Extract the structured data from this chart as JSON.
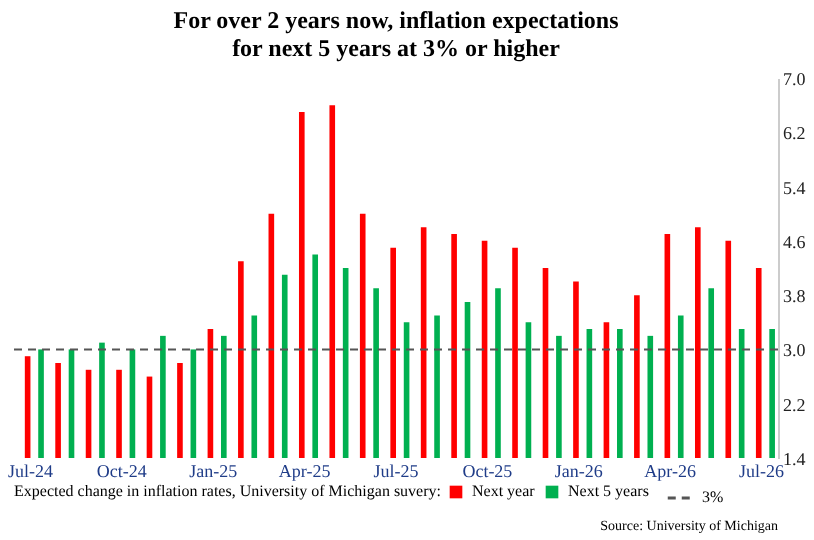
{
  "chart_data": {
    "type": "bar",
    "title": "For over 2 years now, inflation expectations for next 5 years at 3% or higher",
    "legend_title": "Expected change in inflation rates, University of Michigan suvery:",
    "categories": [
      "Jul-24",
      null,
      null,
      "Oct-24",
      null,
      null,
      "Jan-25",
      null,
      null,
      "Apr-25",
      null,
      null,
      "Jul-25",
      null,
      null,
      "Oct-25",
      null,
      null,
      "Jan-26",
      null,
      null,
      "Apr-26",
      null,
      null,
      "Jul-26"
    ],
    "series": [
      {
        "name": "Next year",
        "color": "#ff0000",
        "values": [
          2.9,
          2.8,
          2.7,
          2.7,
          2.6,
          2.8,
          3.3,
          4.3,
          5.0,
          6.5,
          6.6,
          5.0,
          4.5,
          4.8,
          4.7,
          4.6,
          4.5,
          4.2,
          4.0,
          3.4,
          3.8,
          4.7,
          4.8,
          4.6,
          4.2
        ]
      },
      {
        "name": "Next 5 years",
        "color": "#00b050",
        "values": [
          3.0,
          3.0,
          3.1,
          3.0,
          3.2,
          3.0,
          3.2,
          3.5,
          4.1,
          4.4,
          4.2,
          3.9,
          3.4,
          3.5,
          3.7,
          3.9,
          3.4,
          3.2,
          3.3,
          3.3,
          3.2,
          3.5,
          3.9,
          3.3,
          3.3
        ]
      }
    ],
    "ylim": [
      1.4,
      7.0
    ],
    "yticks": [
      1.4,
      2.2,
      {
        "value": 3,
        "label": "3.0"
      },
      3.8,
      4.6,
      5.4,
      6.2,
      {
        "value": 7,
        "label": "7.0"
      }
    ],
    "ref_lines": [
      {
        "axis": "y",
        "value": 3.0,
        "label": "3%",
        "color": "#555555",
        "line_style": "dashed"
      }
    ],
    "legend": "bottom",
    "annotations": [
      "Source: University of Michigan"
    ]
  }
}
